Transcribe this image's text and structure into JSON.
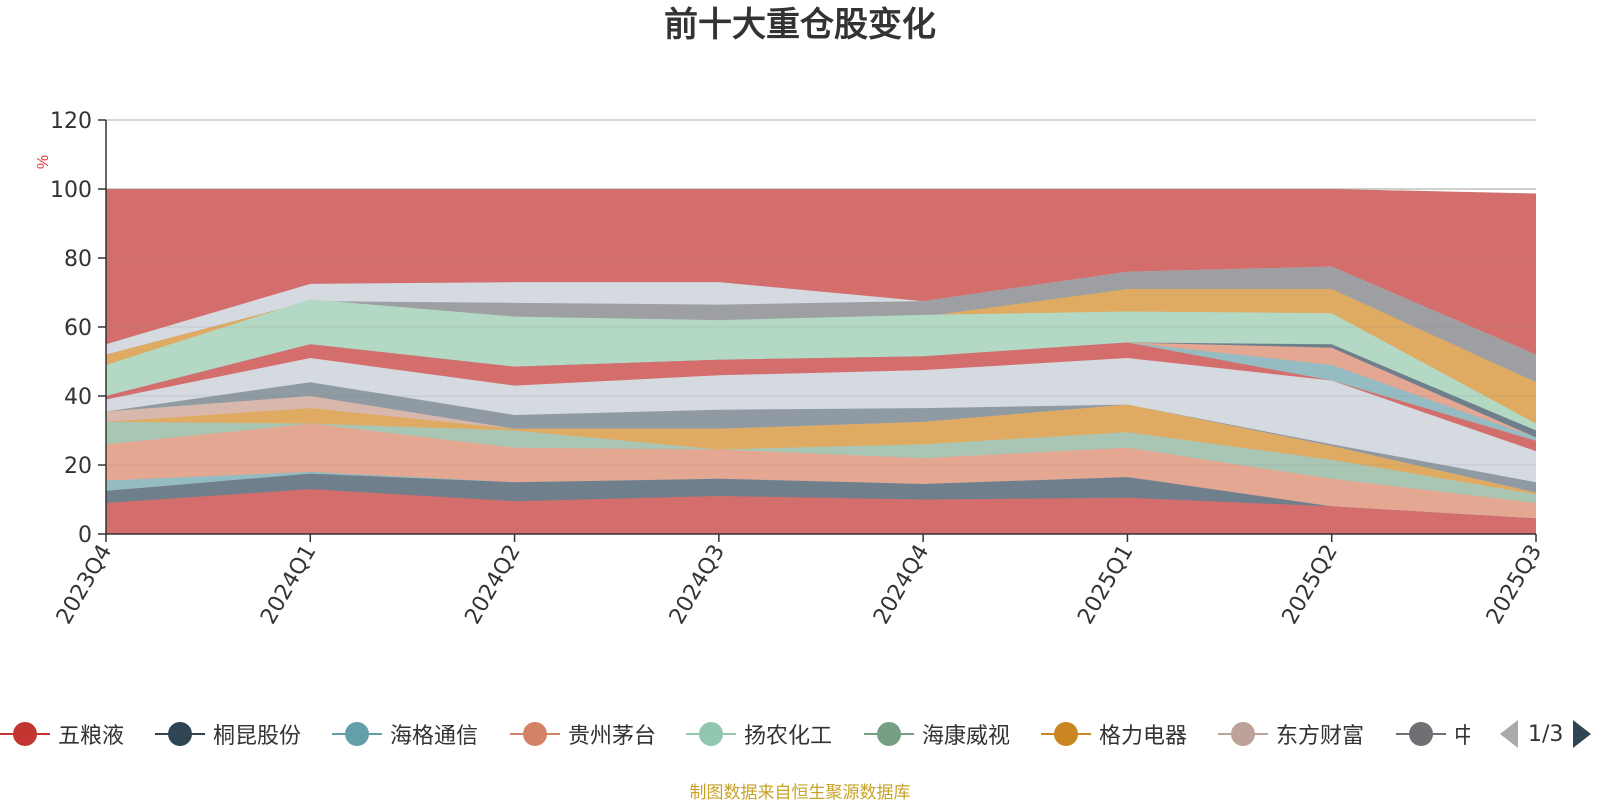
{
  "chart_data": {
    "type": "area",
    "title": "前十大重仓股变化",
    "ylabel": "%",
    "xlabel": "",
    "ylim": [
      0,
      120
    ],
    "yticks": [
      0,
      20,
      40,
      60,
      80,
      100,
      120
    ],
    "grid": true,
    "categories": [
      "2023Q4",
      "2024Q1",
      "2024Q2",
      "2024Q3",
      "2024Q4",
      "2025Q1",
      "2025Q2",
      "2025Q3"
    ],
    "series": [
      {
        "name": "五粮液",
        "color": "#d46e6c",
        "values": [
          100,
          100,
          100,
          100,
          100,
          100,
          100,
          98.7
        ]
      },
      {
        "name": "",
        "color": "#d5dae0",
        "values": [
          55,
          72.5,
          73,
          73,
          67.5,
          76,
          77.5,
          52
        ]
      },
      {
        "name": "",
        "color": "#9d9fa3",
        "values": [
          52,
          67.5,
          67,
          66.5,
          67.5,
          76,
          77.5,
          52
        ]
      },
      {
        "name": "格力电器",
        "color": "#dfab63",
        "values": [
          52,
          67.5,
          63,
          61.5,
          63,
          71,
          71,
          44
        ]
      },
      {
        "name": "扬农化工",
        "color": "#b3d8c4",
        "values": [
          49,
          68,
          63,
          62,
          63.5,
          64.5,
          64,
          32
        ]
      },
      {
        "name": "桐昆股份",
        "color": "#707f8c",
        "values": [
          40,
          55,
          48.5,
          50.5,
          51.5,
          55.5,
          55,
          30
        ]
      },
      {
        "name": "贵州茅台",
        "color": "#e3a792",
        "values": [
          40,
          55,
          48.5,
          50.5,
          51.5,
          55.5,
          54,
          28
        ]
      },
      {
        "name": "海格通信",
        "color": "#94bcc2",
        "values": [
          40,
          55,
          48.5,
          50.5,
          51.5,
          55.5,
          49,
          28
        ]
      },
      {
        "name": "五粮液",
        "color": "#d46e6c",
        "values": [
          40,
          55,
          48.5,
          50.5,
          51.5,
          55.5,
          44.5,
          27
        ]
      },
      {
        "name": "",
        "color": "#d5dae0",
        "values": [
          39,
          51,
          43,
          46,
          47.5,
          51,
          44.5,
          24
        ]
      },
      {
        "name": "",
        "color": "#8f9aa2",
        "values": [
          35.5,
          44,
          34.5,
          36,
          36.5,
          37.5,
          26,
          15
        ]
      },
      {
        "name": "东方财富",
        "color": "#d8b8ad",
        "values": [
          35.5,
          40,
          30.5,
          30.5,
          32.5,
          37.5,
          25.5,
          12
        ]
      },
      {
        "name": "格力电器",
        "color": "#dfab63",
        "values": [
          32.5,
          36.5,
          30.5,
          30.5,
          32.5,
          37.5,
          25.5,
          12
        ]
      },
      {
        "name": "海康威视",
        "color": "#a9c6b5",
        "values": [
          32.5,
          32,
          30,
          24.5,
          26,
          29.5,
          21.5,
          11.5
        ]
      },
      {
        "name": "贵州茅台",
        "color": "#e3a792",
        "values": [
          26,
          32,
          25,
          24.5,
          22,
          25,
          16,
          9
        ]
      },
      {
        "name": "海格通信",
        "color": "#94bcc2",
        "values": [
          15.5,
          18,
          15,
          16,
          14.5,
          16.5,
          8,
          4.5
        ]
      },
      {
        "name": "桐昆股份",
        "color": "#707f8c",
        "values": [
          12.5,
          17.5,
          15,
          16,
          14.5,
          16.5,
          8,
          4.5
        ]
      },
      {
        "name": "五粮液",
        "color": "#d46e6c",
        "values": [
          9,
          13,
          9.5,
          11,
          10,
          10.5,
          8,
          4.5
        ]
      }
    ],
    "legend_placement": "bottom"
  },
  "legend": {
    "items": [
      {
        "label": "五粮液",
        "color": "#c23531"
      },
      {
        "label": "桐昆股份",
        "color": "#2f4554"
      },
      {
        "label": "海格通信",
        "color": "#61a0a8"
      },
      {
        "label": "贵州茅台",
        "color": "#d48265"
      },
      {
        "label": "扬农化工",
        "color": "#91c7ae"
      },
      {
        "label": "海康威视",
        "color": "#749f83"
      },
      {
        "label": "格力电器",
        "color": "#ca8622"
      },
      {
        "label": "东方财富",
        "color": "#bda29a"
      },
      {
        "label": "中兴通讯",
        "color": "#6e7074"
      }
    ],
    "page": "1/3"
  },
  "source_note": "制图数据来自恒生聚源数据库"
}
